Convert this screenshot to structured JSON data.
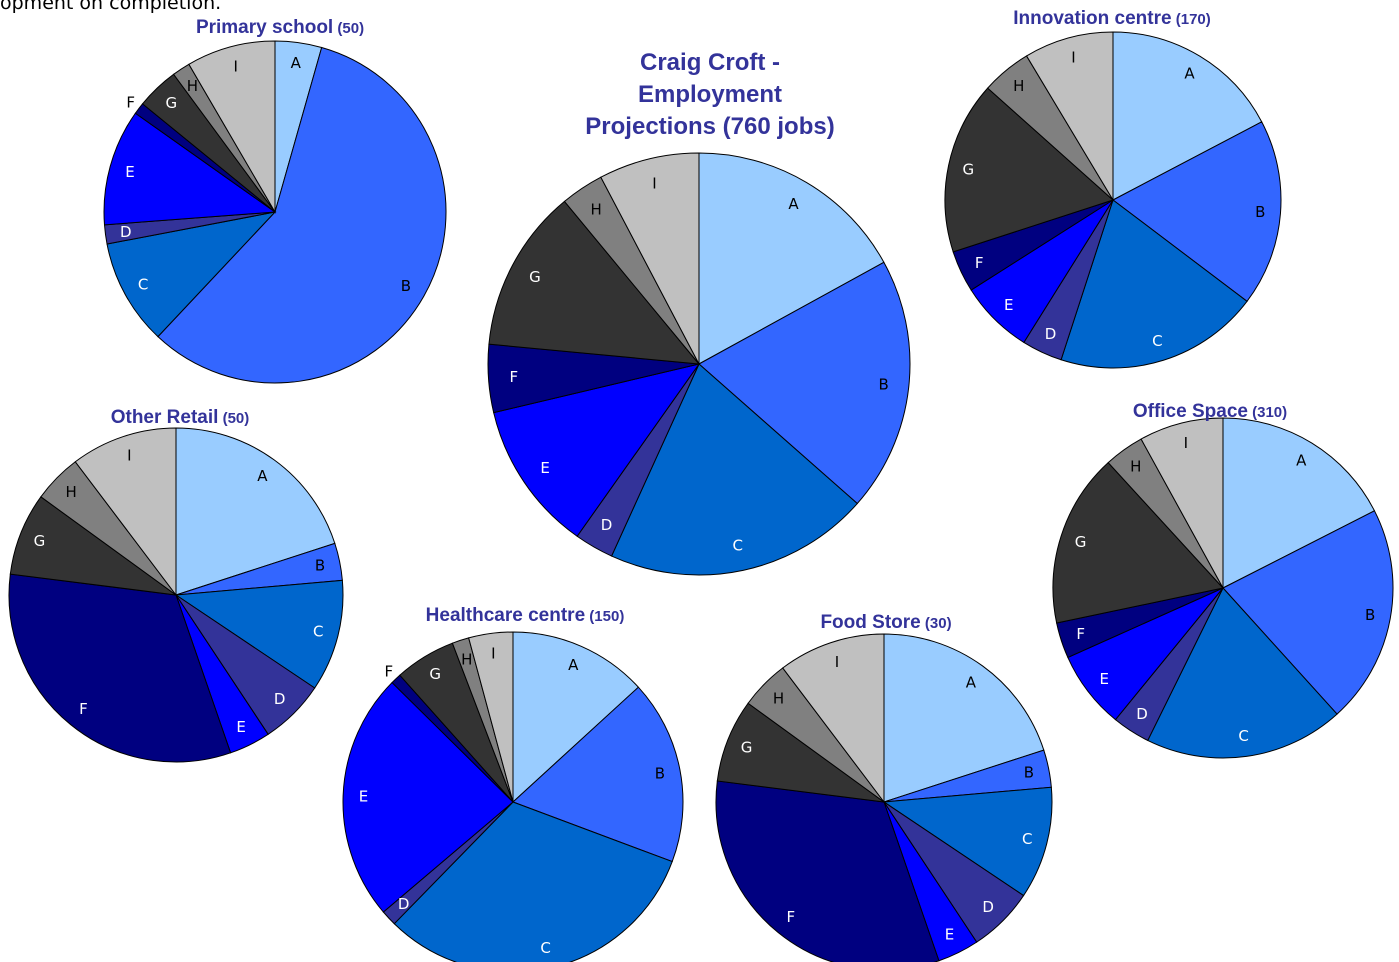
{
  "top_text": "opment on completion.",
  "colors": {
    "title": "#33339a",
    "slices": {
      "A": "#99ccff",
      "B": "#3366ff",
      "C": "#0066cc",
      "D": "#333399",
      "E": "#0000ff",
      "F": "#000080",
      "G": "#333333",
      "H": "#808080",
      "I": "#c0c0c0"
    },
    "label_dark": "#000000",
    "label_light": "#ffffff"
  },
  "chart_data": [
    {
      "type": "pie",
      "title": "Primary school",
      "title_suffix": "(50)",
      "categories": [
        "A",
        "B",
        "C",
        "D",
        "E",
        "F",
        "G",
        "H",
        "I"
      ],
      "values": [
        4.4,
        57.6,
        10.0,
        1.8,
        11.0,
        1.1,
        4.0,
        1.7,
        8.4
      ]
    },
    {
      "type": "pie",
      "title": "Craig Croft -\nEmployment\nProjections",
      "title_suffix": "(760 jobs)",
      "categories": [
        "A",
        "B",
        "C",
        "D",
        "E",
        "F",
        "G",
        "H",
        "I"
      ],
      "values": [
        17.0,
        19.5,
        20.3,
        3.0,
        11.5,
        5.2,
        12.5,
        3.3,
        7.7
      ]
    },
    {
      "type": "pie",
      "title": "Innovation centre",
      "title_suffix": "(170)",
      "categories": [
        "A",
        "B",
        "C",
        "D",
        "E",
        "F",
        "G",
        "H",
        "I"
      ],
      "values": [
        17.3,
        18.0,
        19.7,
        3.9,
        7.1,
        4.0,
        16.6,
        4.8,
        8.6
      ]
    },
    {
      "type": "pie",
      "title": "Other Retail",
      "title_suffix": "(50)",
      "categories": [
        "A",
        "B",
        "C",
        "D",
        "E",
        "F",
        "G",
        "H",
        "I"
      ],
      "values": [
        20.0,
        3.6,
        10.8,
        6.3,
        4.0,
        32.3,
        8.0,
        4.7,
        10.3
      ]
    },
    {
      "type": "pie",
      "title": "Office Space",
      "title_suffix": "(310)",
      "categories": [
        "A",
        "B",
        "C",
        "D",
        "E",
        "F",
        "G",
        "H",
        "I"
      ],
      "values": [
        17.5,
        20.8,
        19.0,
        3.6,
        7.4,
        3.4,
        16.5,
        3.8,
        8.0
      ]
    },
    {
      "type": "pie",
      "title": "Healthcare centre",
      "title_suffix": "(150)",
      "categories": [
        "A",
        "B",
        "C",
        "D",
        "E",
        "F",
        "G",
        "H",
        "I"
      ],
      "values": [
        13.2,
        17.5,
        31.6,
        1.5,
        23.6,
        1.0,
        5.8,
        1.6,
        4.2
      ]
    },
    {
      "type": "pie",
      "title": "Food Store",
      "title_suffix": "(30)",
      "categories": [
        "A",
        "B",
        "C",
        "D",
        "E",
        "F",
        "G",
        "H",
        "I"
      ],
      "values": [
        20.0,
        3.6,
        10.8,
        6.3,
        4.0,
        32.3,
        8.0,
        4.7,
        10.3
      ]
    }
  ]
}
